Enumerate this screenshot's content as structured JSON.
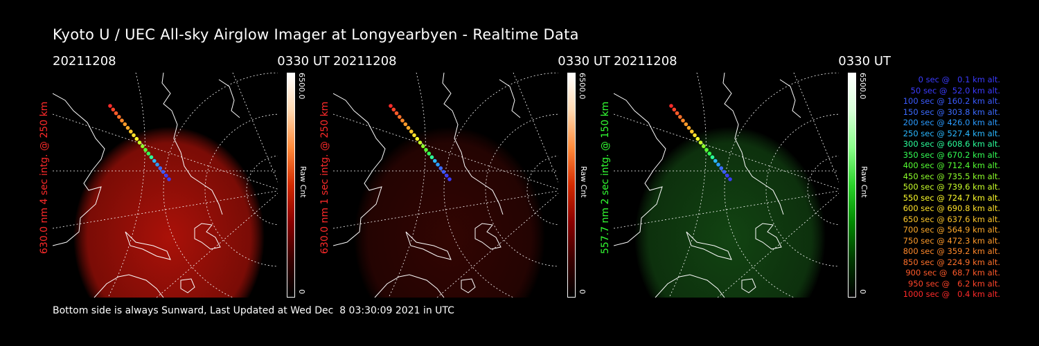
{
  "title": "Kyoto U / UEC All-sky Airglow Imager at Longyearbyen - Realtime Data",
  "footer": "Bottom side is always Sunward, Last Updated at Wed Dec  8 03:30:09 2021 in UTC",
  "colors": {
    "red_label": "#ff2a2a",
    "green_label": "#33ff33"
  },
  "panels": [
    {
      "date": "20211208",
      "time": "0330 UT",
      "ylabel": "630.0 nm 4 sec intg. @ 250 km",
      "label_color": "#ff2a2a",
      "colorbar_max": "6500.0",
      "colorbar_min": "0",
      "colorbar_unit": "Raw Cnt",
      "colormap": "red",
      "glow_level": 0.85
    },
    {
      "date": "20211208",
      "time": "0330 UT",
      "ylabel": "630.0 nm 1 sec intg. @ 250 km",
      "label_color": "#ff2a2a",
      "colorbar_max": "6500.0",
      "colorbar_min": "0",
      "colorbar_unit": "Raw Cnt",
      "colormap": "red",
      "glow_level": 0.25
    },
    {
      "date": "20211208",
      "time": "0330 UT",
      "ylabel": "557.7 nm 2 sec intg. @ 150 km",
      "label_color": "#33ff33",
      "colorbar_max": "6500.0",
      "colorbar_min": "0",
      "colorbar_unit": "Raw Cnt",
      "colormap": "green",
      "glow_level": 0.45
    }
  ],
  "legend": [
    {
      "text": "0 sec @   0.1 km alt.",
      "color": "#3b3bff"
    },
    {
      "text": "50 sec @  52.0 km alt.",
      "color": "#3b3bff"
    },
    {
      "text": "100 sec @ 160.2 km alt.",
      "color": "#3b5bff"
    },
    {
      "text": "150 sec @ 303.8 km alt.",
      "color": "#3b6bff"
    },
    {
      "text": "200 sec @ 426.0 km alt.",
      "color": "#2a9bff"
    },
    {
      "text": "250 sec @ 527.4 km alt.",
      "color": "#2ab8ff"
    },
    {
      "text": "300 sec @ 608.6 km alt.",
      "color": "#2aff9b"
    },
    {
      "text": "350 sec @ 670.2 km alt.",
      "color": "#33ff55"
    },
    {
      "text": "400 sec @ 712.4 km alt.",
      "color": "#55ff33"
    },
    {
      "text": "450 sec @ 735.5 km alt.",
      "color": "#8dff2a"
    },
    {
      "text": "500 sec @ 739.6 km alt.",
      "color": "#c8ff2a"
    },
    {
      "text": "550 sec @ 724.7 km alt.",
      "color": "#ffff2a"
    },
    {
      "text": "600 sec @ 690.8 km alt.",
      "color": "#ffe22a"
    },
    {
      "text": "650 sec @ 637.6 km alt.",
      "color": "#ffc82a"
    },
    {
      "text": "700 sec @ 564.9 km alt.",
      "color": "#ffaa2a"
    },
    {
      "text": "750 sec @ 472.3 km alt.",
      "color": "#ff9a2a"
    },
    {
      "text": "800 sec @ 359.2 km alt.",
      "color": "#ff882a"
    },
    {
      "text": "850 sec @ 224.9 km alt.",
      "color": "#ff702a"
    },
    {
      "text": "900 sec @  68.7 km alt.",
      "color": "#ff5a2a"
    },
    {
      "text": "950 sec @   6.2 km alt.",
      "color": "#ff442a"
    },
    {
      "text": "1000 sec @   0.4 km alt.",
      "color": "#ff2a2a"
    }
  ]
}
